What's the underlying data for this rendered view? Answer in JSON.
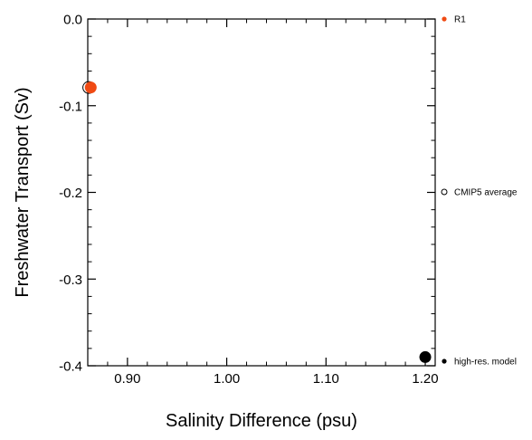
{
  "chart_data": {
    "type": "scatter",
    "title": "",
    "xlabel": "Salinity Difference (psu)",
    "ylabel": "Freshwater Transport (Sv)",
    "xlim": [
      0.86,
      1.21
    ],
    "ylim": [
      -0.4,
      0.0
    ],
    "x_ticks": [
      0.9,
      1.0,
      1.1,
      1.2
    ],
    "x_tick_labels": [
      "0.90",
      "1.00",
      "1.10",
      "1.20"
    ],
    "y_ticks": [
      0.0,
      -0.1,
      -0.2,
      -0.3,
      -0.4
    ],
    "y_tick_labels": [
      "0.0",
      "-0.1",
      "-0.2",
      "-0.3",
      "-0.4"
    ],
    "grid": false,
    "legend_position": "outside-right",
    "series": [
      {
        "name": "R1",
        "color": "#f04a13",
        "marker": "filled-circle",
        "points": [
          {
            "x": 0.863,
            "y": -0.079
          }
        ]
      },
      {
        "name": "CMIP5 average",
        "color": "#000000",
        "marker": "open-circle",
        "points": [
          {
            "x": 0.861,
            "y": -0.079
          }
        ]
      },
      {
        "name": "high-res. model",
        "color": "#000000",
        "marker": "filled-circle",
        "points": [
          {
            "x": 1.2,
            "y": -0.39
          }
        ]
      }
    ]
  }
}
